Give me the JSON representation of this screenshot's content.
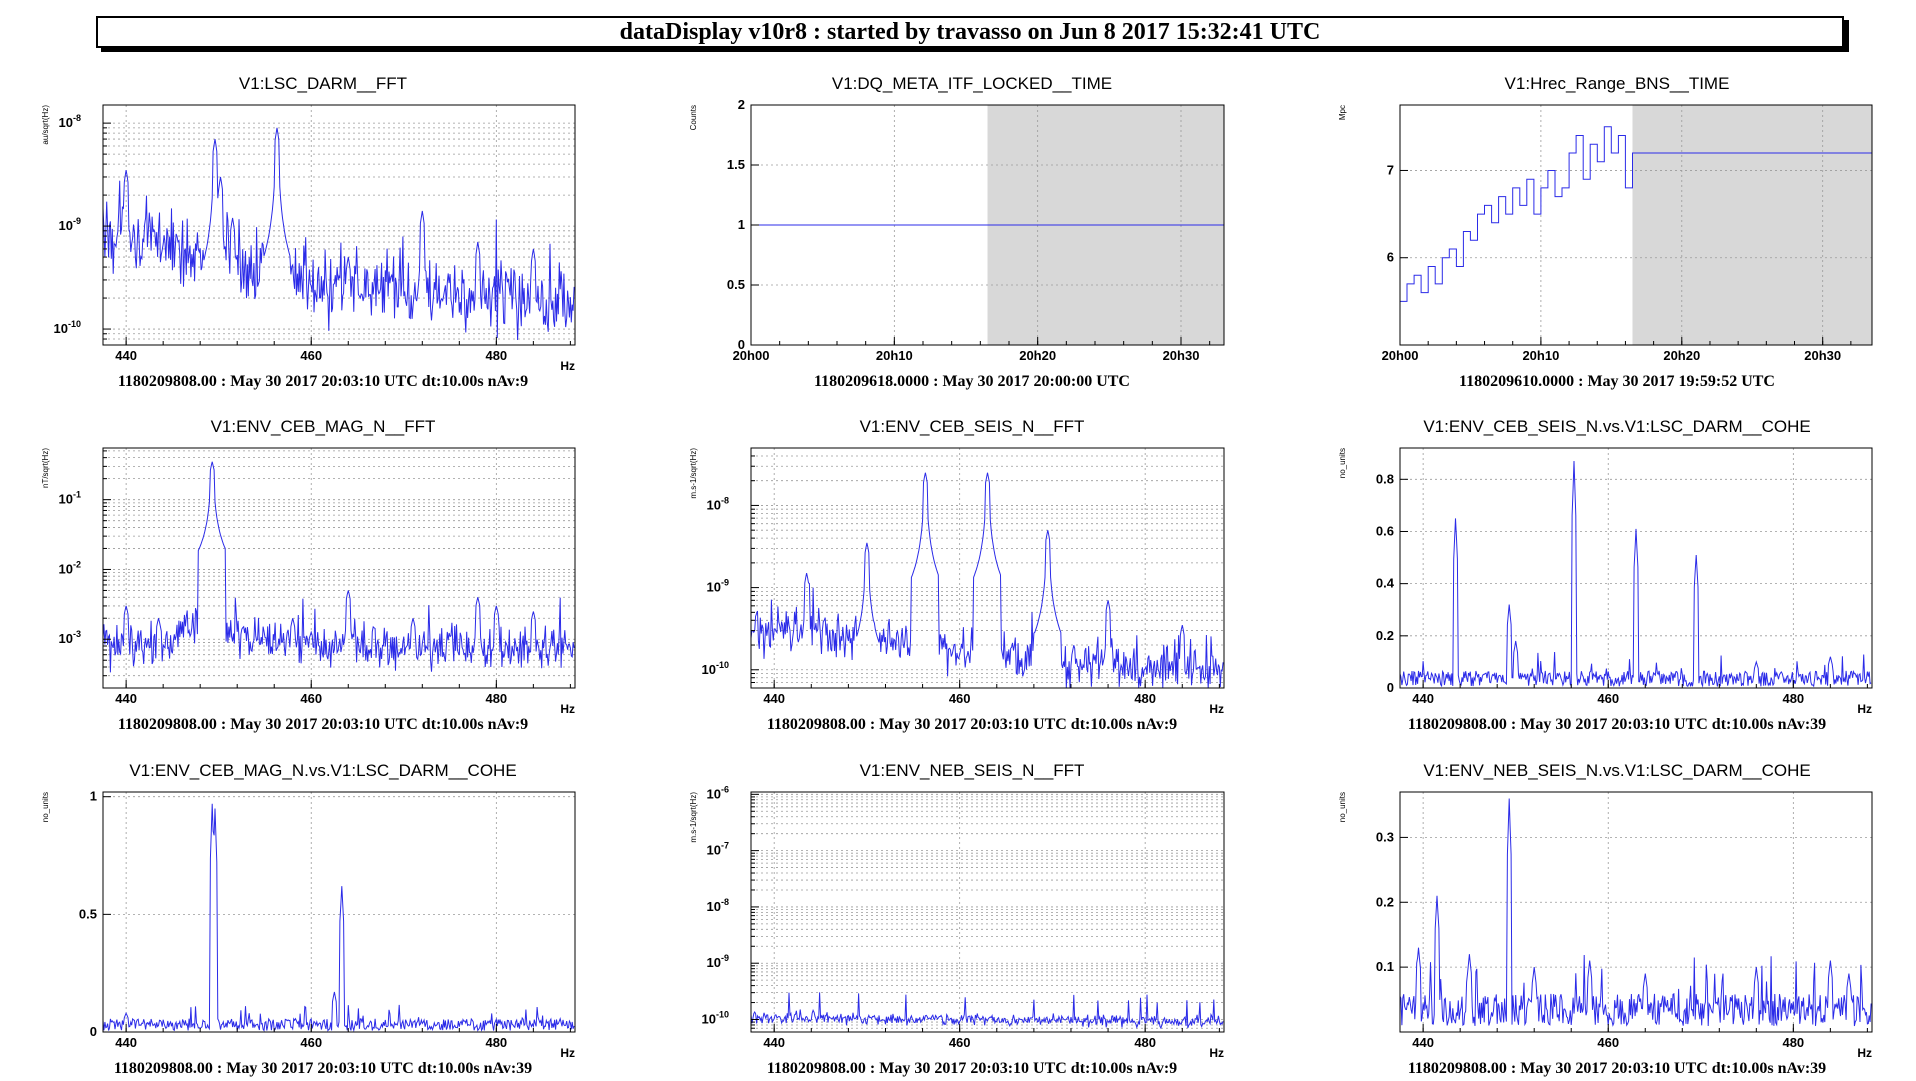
{
  "header": {
    "title": "dataDisplay v10r8 : started by travasso on Jun  8 2017 15:32:41 UTC"
  },
  "colors": {
    "trace": "#2b2be8",
    "shade": "#d8d8d8",
    "grid": "#9a9a9a",
    "frame": "#000000"
  },
  "chart_data": [
    {
      "type": "line",
      "title": "V1:LSC_DARM__FFT",
      "ylabel": "au/sqrt(Hz)",
      "xlabel": "Hz",
      "footer": "1180209808.00 : May 30 2017 20:03:10 UTC dt:10.00s nAv:9",
      "log_y": true,
      "grid": true,
      "xlim": [
        437.5,
        488.5
      ],
      "ylim": [
        7e-11,
        1.5e-08
      ],
      "x_ticks": [
        440,
        460,
        480
      ],
      "y_ticks": [
        {
          "v": 1e-10,
          "label": "10",
          "exp": "-10"
        },
        {
          "v": 1e-09,
          "label": "10",
          "exp": "-9"
        },
        {
          "v": 1e-08,
          "label": "10",
          "exp": "-8"
        }
      ],
      "series": [
        {
          "base": 2.5e-10,
          "noise": 0.4,
          "step": 0.1,
          "rise": [
            [
              437.5,
              9e-10
            ],
            [
              445,
              6e-10
            ],
            [
              462,
              2.5e-10
            ],
            [
              488.5,
              2e-10
            ]
          ],
          "peaks": [
            [
              440,
              3.5e-09
            ],
            [
              449.6,
              7e-09
            ],
            [
              450.2,
              3e-09
            ],
            [
              456.3,
              9e-09
            ],
            [
              451.5,
              1.2e-09
            ],
            [
              464,
              5e-10
            ],
            [
              472,
              1.4e-09
            ],
            [
              478,
              7e-10
            ],
            [
              484,
              6e-10
            ],
            [
              445.5,
              8e-10
            ]
          ]
        }
      ]
    },
    {
      "type": "line",
      "title": "V1:DQ_META_ITF_LOCKED__TIME",
      "ylabel": "Counts",
      "footer": "1180209618.0000 : May 30 2017 20:00:00 UTC",
      "grid": true,
      "xlim": [
        0,
        33
      ],
      "ylim": [
        0,
        2
      ],
      "x_ticks": [
        {
          "v": 0,
          "label": "20h00"
        },
        {
          "v": 10,
          "label": "20h10"
        },
        {
          "v": 20,
          "label": "20h20"
        },
        {
          "v": 30,
          "label": "20h30"
        }
      ],
      "y_ticks": [
        {
          "v": 0,
          "label": "0"
        },
        {
          "v": 0.5,
          "label": "0.5"
        },
        {
          "v": 1,
          "label": "1"
        },
        {
          "v": 1.5,
          "label": "1.5"
        },
        {
          "v": 2,
          "label": "2"
        }
      ],
      "shade_from": 16.5,
      "series": [
        {
          "x": [
            0,
            33
          ],
          "y": [
            1,
            1
          ]
        }
      ]
    },
    {
      "type": "line",
      "title": "V1:Hrec_Range_BNS__TIME",
      "ylabel": "Mpc",
      "footer": "1180209610.0000 : May 30 2017 19:59:52 UTC",
      "grid": true,
      "xlim": [
        0,
        33.5
      ],
      "ylim": [
        5,
        7.75
      ],
      "x_ticks": [
        {
          "v": 0,
          "label": "20h00"
        },
        {
          "v": 10,
          "label": "20h10"
        },
        {
          "v": 20,
          "label": "20h20"
        },
        {
          "v": 30,
          "label": "20h30"
        }
      ],
      "y_ticks": [
        {
          "v": 6,
          "label": "6"
        },
        {
          "v": 7,
          "label": "7"
        }
      ],
      "shade_from": 16.5,
      "series": [
        {
          "x": [
            0,
            0.5,
            1,
            1.5,
            2,
            2.5,
            3,
            3.5,
            4,
            4.5,
            5,
            5.5,
            6,
            6.5,
            7,
            7.5,
            8,
            8.5,
            9,
            9.5,
            10,
            10.5,
            11,
            11.5,
            12,
            12.5,
            13,
            13.5,
            14,
            14.5,
            15,
            15.5,
            16,
            16.5,
            33.5
          ],
          "y": [
            5.5,
            5.7,
            5.8,
            5.6,
            5.9,
            5.7,
            6.0,
            6.1,
            5.9,
            6.3,
            6.2,
            6.5,
            6.6,
            6.4,
            6.7,
            6.5,
            6.8,
            6.6,
            6.9,
            6.5,
            6.8,
            7.0,
            6.7,
            6.8,
            7.2,
            7.4,
            6.9,
            7.3,
            7.1,
            7.5,
            7.2,
            7.4,
            6.8,
            7.2,
            7.2
          ]
        }
      ]
    },
    {
      "type": "line",
      "title": "V1:ENV_CEB_MAG_N__FFT",
      "ylabel": "nT/sqrt(Hz)",
      "xlabel": "Hz",
      "footer": "1180209808.00 : May 30 2017 20:03:10 UTC dt:10.00s nAv:9",
      "log_y": true,
      "grid": true,
      "xlim": [
        437.5,
        488.5
      ],
      "ylim": [
        0.0002,
        0.55
      ],
      "x_ticks": [
        440,
        460,
        480
      ],
      "y_ticks": [
        {
          "v": 0.001,
          "label": "10",
          "exp": "-3"
        },
        {
          "v": 0.01,
          "label": "10",
          "exp": "-2"
        },
        {
          "v": 0.1,
          "label": "10",
          "exp": "-1"
        }
      ],
      "series": [
        {
          "base": 0.0008,
          "noise": 0.35,
          "step": 0.1,
          "rise": [
            [
              437.5,
              0.0008
            ],
            [
              445,
              0.0009
            ],
            [
              449.3,
              0.0035
            ],
            [
              451,
              0.0012
            ],
            [
              458,
              0.0008
            ],
            [
              488.5,
              0.0007
            ]
          ],
          "peaks": [
            [
              449.3,
              0.35
            ],
            [
              440,
              0.003
            ],
            [
              443.5,
              0.002
            ],
            [
              464,
              0.005
            ],
            [
              471,
              0.002
            ],
            [
              478,
              0.004
            ],
            [
              480,
              0.003
            ],
            [
              484,
              0.0025
            ],
            [
              458,
              0.002
            ]
          ]
        }
      ]
    },
    {
      "type": "line",
      "title": "V1:ENV_CEB_SEIS_N__FFT",
      "ylabel": "m.s-1/sqrt(Hz)",
      "xlabel": "Hz",
      "footer": "1180209808.00 : May 30 2017 20:03:10 UTC dt:10.00s nAv:9",
      "log_y": true,
      "grid": true,
      "xlim": [
        437.5,
        488.5
      ],
      "ylim": [
        6e-11,
        5e-08
      ],
      "x_ticks": [
        440,
        460,
        480
      ],
      "y_ticks": [
        {
          "v": 1e-10,
          "label": "10",
          "exp": "-10"
        },
        {
          "v": 1e-09,
          "label": "10",
          "exp": "-9"
        },
        {
          "v": 1e-08,
          "label": "10",
          "exp": "-8"
        }
      ],
      "series": [
        {
          "base": 1.5e-10,
          "noise": 0.3,
          "step": 0.1,
          "rise": [
            [
              437.5,
              3e-10
            ],
            [
              450,
              2.5e-10
            ],
            [
              462,
              1.5e-10
            ],
            [
              488.5,
              1e-10
            ]
          ],
          "peaks": [
            [
              443.5,
              1.5e-09
            ],
            [
              450,
              3.5e-09
            ],
            [
              456.3,
              2.5e-08
            ],
            [
              463,
              2.5e-08
            ],
            [
              469.5,
              5e-09
            ],
            [
              476,
              7e-10
            ],
            [
              484,
              3.5e-10
            ]
          ]
        }
      ]
    },
    {
      "type": "line",
      "title": "V1:ENV_CEB_SEIS_N.vs.V1:LSC_DARM__COHE",
      "ylabel": "no_units",
      "xlabel": "Hz",
      "footer": "1180209808.00 : May 30 2017 20:03:10 UTC dt:10.00s nAv:39",
      "grid": true,
      "xlim": [
        437.5,
        488.5
      ],
      "ylim": [
        0,
        0.92
      ],
      "x_ticks": [
        440,
        460,
        480
      ],
      "y_ticks": [
        {
          "v": 0,
          "label": "0"
        },
        {
          "v": 0.2,
          "label": "0.2"
        },
        {
          "v": 0.4,
          "label": "0.4"
        },
        {
          "v": 0.6,
          "label": "0.6"
        },
        {
          "v": 0.8,
          "label": "0.8"
        }
      ],
      "series": [
        {
          "base": 0.02,
          "noise": 0.06,
          "step": 0.1,
          "linear": true,
          "peaks": [
            [
              443.5,
              0.65
            ],
            [
              449.3,
              0.32
            ],
            [
              450,
              0.18
            ],
            [
              456.3,
              0.87
            ],
            [
              463,
              0.61
            ],
            [
              469.5,
              0.51
            ],
            [
              476,
              0.1
            ],
            [
              484,
              0.12
            ]
          ]
        }
      ]
    },
    {
      "type": "line",
      "title": "V1:ENV_CEB_MAG_N.vs.V1:LSC_DARM__COHE",
      "ylabel": "no_units",
      "xlabel": "Hz",
      "footer": "1180209808.00 : May 30 2017 20:03:10 UTC dt:10.00s nAv:39",
      "grid": true,
      "xlim": [
        437.5,
        488.5
      ],
      "ylim": [
        0,
        1.02
      ],
      "x_ticks": [
        440,
        460,
        480
      ],
      "y_ticks": [
        {
          "v": 0,
          "label": "0"
        },
        {
          "v": 0.5,
          "label": "0.5"
        },
        {
          "v": 1,
          "label": "1"
        }
      ],
      "series": [
        {
          "base": 0.02,
          "noise": 0.05,
          "step": 0.1,
          "linear": true,
          "peaks": [
            [
              449.3,
              0.97
            ],
            [
              449.6,
              0.95
            ],
            [
              462.5,
              0.17
            ],
            [
              463.3,
              0.62
            ],
            [
              440,
              0.08
            ]
          ]
        }
      ]
    },
    {
      "type": "line",
      "title": "V1:ENV_NEB_SEIS_N__FFT",
      "ylabel": "m.s-1/sqrt(Hz)",
      "xlabel": "Hz",
      "footer": "1180209808.00 : May 30 2017 20:03:10 UTC dt:10.00s nAv:9",
      "log_y": true,
      "grid": true,
      "xlim": [
        437.5,
        488.5
      ],
      "ylim": [
        6e-11,
        1.1e-06
      ],
      "x_ticks": [
        440,
        460,
        480
      ],
      "y_ticks": [
        {
          "v": 1e-10,
          "label": "10",
          "exp": "-10"
        },
        {
          "v": 1e-09,
          "label": "10",
          "exp": "-9"
        },
        {
          "v": 1e-08,
          "label": "10",
          "exp": "-8"
        },
        {
          "v": 1e-07,
          "label": "10",
          "exp": "-7"
        },
        {
          "v": 1e-06,
          "label": "10",
          "exp": "-6"
        }
      ],
      "series": [
        {
          "base": 1e-10,
          "noise": 0.12,
          "step": 0.1,
          "rise": [
            [
              437.5,
              1.1e-10
            ],
            [
              488.5,
              9e-11
            ]
          ],
          "peaks": []
        }
      ]
    },
    {
      "type": "line",
      "title": "V1:ENV_NEB_SEIS_N.vs.V1:LSC_DARM__COHE",
      "ylabel": "no_units",
      "xlabel": "Hz",
      "footer": "1180209808.00 : May 30 2017 20:03:10 UTC dt:10.00s nAv:39",
      "grid": true,
      "xlim": [
        437.5,
        488.5
      ],
      "ylim": [
        0,
        0.37
      ],
      "x_ticks": [
        440,
        460,
        480
      ],
      "y_ticks": [
        {
          "v": 0.1,
          "label": "0.1"
        },
        {
          "v": 0.2,
          "label": "0.2"
        },
        {
          "v": 0.3,
          "label": "0.3"
        }
      ],
      "series": [
        {
          "base": 0.03,
          "noise": 0.05,
          "step": 0.1,
          "linear": true,
          "peaks": [
            [
              449.3,
              0.36
            ],
            [
              441.5,
              0.21
            ],
            [
              439.5,
              0.13
            ],
            [
              445,
              0.12
            ],
            [
              452,
              0.1
            ],
            [
              458,
              0.11
            ],
            [
              464,
              0.09
            ],
            [
              476,
              0.1
            ],
            [
              484,
              0.11
            ],
            [
              486,
              0.09
            ]
          ]
        }
      ]
    }
  ]
}
